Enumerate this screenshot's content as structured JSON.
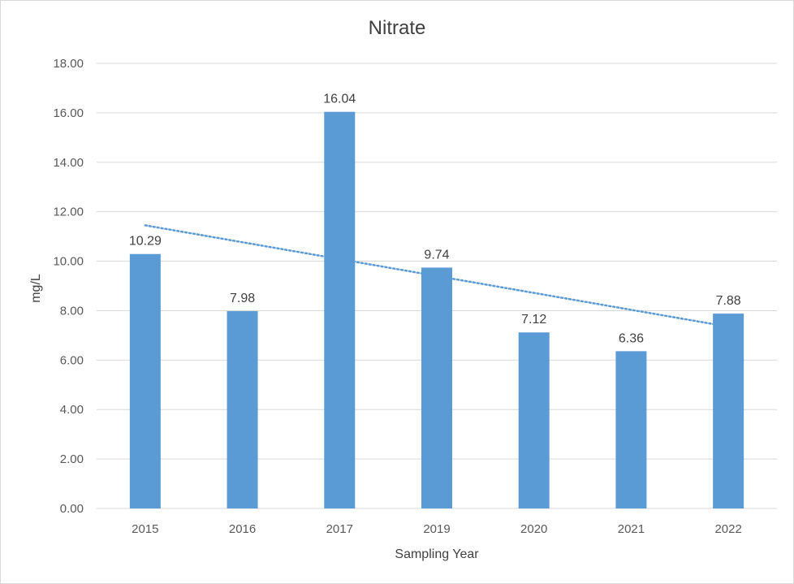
{
  "chart_data": {
    "type": "bar",
    "title": "Nitrate",
    "xlabel": "Sampling Year",
    "ylabel": "mg/L",
    "categories": [
      "2015",
      "2016",
      "2017",
      "2019",
      "2020",
      "2021",
      "2022"
    ],
    "values": [
      10.29,
      7.98,
      16.04,
      9.74,
      7.12,
      6.36,
      7.88
    ],
    "data_labels": [
      "10.29",
      "7.98",
      "16.04",
      "9.74",
      "7.12",
      "6.36",
      "7.88"
    ],
    "ylim": [
      0,
      18
    ],
    "yticks": [
      0,
      2,
      4,
      6,
      8,
      10,
      12,
      14,
      16,
      18
    ],
    "ytick_labels": [
      "0.00",
      "2.00",
      "4.00",
      "6.00",
      "8.00",
      "10.00",
      "12.00",
      "14.00",
      "16.00",
      "18.00"
    ],
    "trendline": {
      "type": "linear",
      "style": "dotted",
      "start_value": 11.45,
      "end_value": 7.35
    },
    "grid": true,
    "legend": "none",
    "colors": {
      "bar": "#5b9bd5",
      "trendline": "#5b9bd5",
      "grid": "#d9d9d9",
      "text": "#404040",
      "tick_text": "#595959"
    }
  }
}
